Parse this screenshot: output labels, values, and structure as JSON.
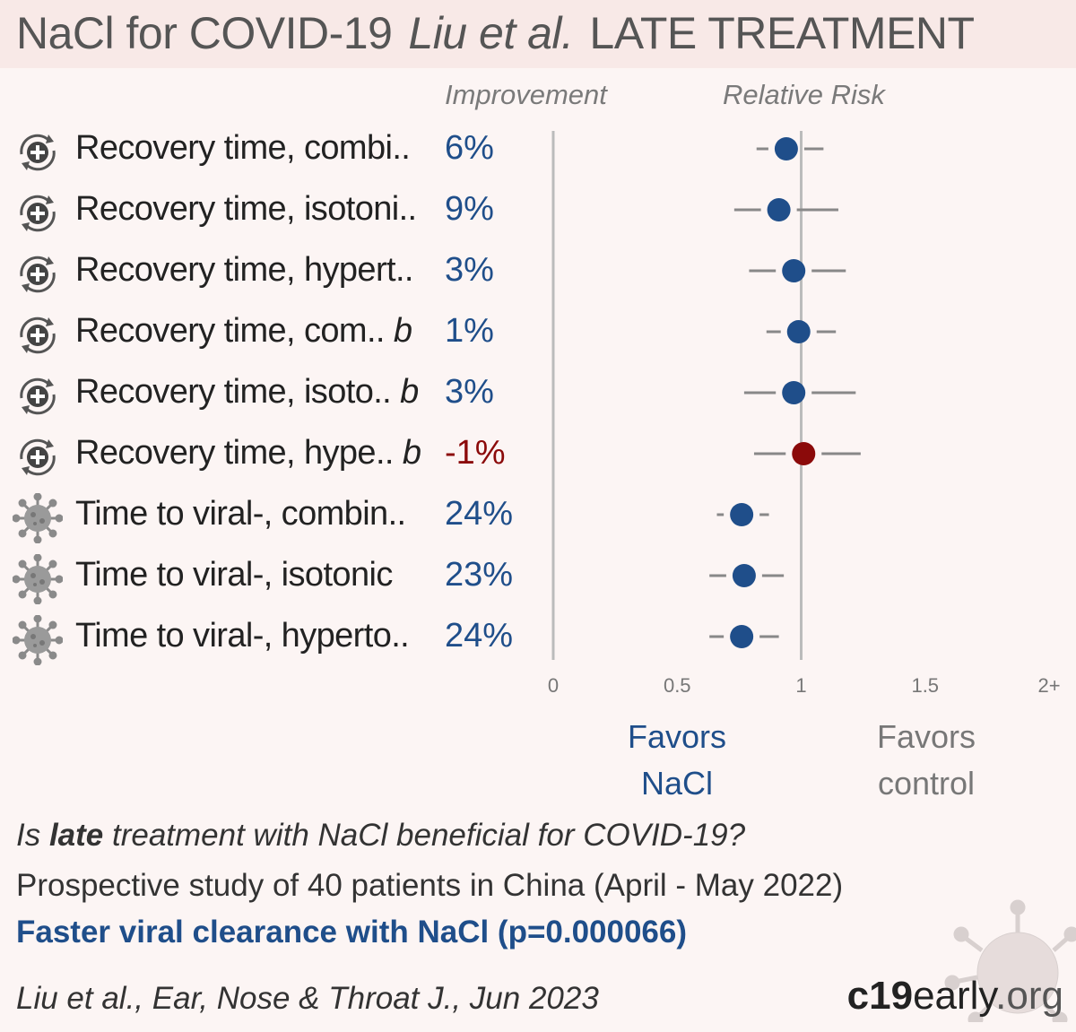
{
  "header": {
    "treatment_title": "NaCl for COVID-19",
    "authors": "Liu et al.",
    "stage": "LATE TREATMENT"
  },
  "columns": {
    "improvement": "Improvement",
    "relative_risk": "Relative Risk"
  },
  "rows": [
    {
      "icon": "recovery-icon",
      "label": "Recovery time, combi..",
      "suffix": "",
      "improvement": "6%"
    },
    {
      "icon": "recovery-icon",
      "label": "Recovery time, isotoni..",
      "suffix": "",
      "improvement": "9%"
    },
    {
      "icon": "recovery-icon",
      "label": "Recovery time, hypert..",
      "suffix": "",
      "improvement": "3%"
    },
    {
      "icon": "recovery-icon",
      "label": "Recovery time, com..",
      "suffix": "b",
      "improvement": "1%"
    },
    {
      "icon": "recovery-icon",
      "label": "Recovery time, isoto..",
      "suffix": "b",
      "improvement": "3%"
    },
    {
      "icon": "recovery-icon",
      "label": "Recovery time, hype..",
      "suffix": "b",
      "improvement": "-1%"
    },
    {
      "icon": "virus-icon",
      "label": "Time to viral-, combin..",
      "suffix": "",
      "improvement": "24%"
    },
    {
      "icon": "virus-icon",
      "label": "Time to viral-, isotonic",
      "suffix": "",
      "improvement": "23%"
    },
    {
      "icon": "virus-icon",
      "label": "Time to viral-, hyperto..",
      "suffix": "",
      "improvement": "24%"
    }
  ],
  "chart_data": {
    "type": "forest",
    "x_ticks": [
      "0",
      "0.5",
      "1",
      "1.5",
      "2+"
    ],
    "xlim": [
      0,
      2
    ],
    "reference_line": 1,
    "series": [
      {
        "label": "Recovery time, combi..",
        "rr": 0.94,
        "ci": [
          0.82,
          1.09
        ]
      },
      {
        "label": "Recovery time, isotoni..",
        "rr": 0.91,
        "ci": [
          0.73,
          1.15
        ]
      },
      {
        "label": "Recovery time, hypert..",
        "rr": 0.97,
        "ci": [
          0.79,
          1.18
        ]
      },
      {
        "label": "Recovery time, com.. b",
        "rr": 0.99,
        "ci": [
          0.86,
          1.14
        ]
      },
      {
        "label": "Recovery time, isoto.. b",
        "rr": 0.97,
        "ci": [
          0.77,
          1.22
        ]
      },
      {
        "label": "Recovery time, hype.. b",
        "rr": 1.01,
        "ci": [
          0.81,
          1.24
        ]
      },
      {
        "label": "Time to viral-, combin..",
        "rr": 0.76,
        "ci": [
          0.66,
          0.87
        ]
      },
      {
        "label": "Time to viral-, isotonic",
        "rr": 0.77,
        "ci": [
          0.63,
          0.93
        ]
      },
      {
        "label": "Time to viral-, hyperto..",
        "rr": 0.76,
        "ci": [
          0.63,
          0.91
        ]
      }
    ],
    "colors": {
      "benefit": "#1f4e8a",
      "harm": "#8b0a0a",
      "ci": "#888888",
      "axis": "#bbbbbb"
    }
  },
  "favors": {
    "left_line1": "Favors",
    "left_line2": "NaCl",
    "right_line1": "Favors",
    "right_line2": "control"
  },
  "summary": {
    "question_pre": "Is ",
    "question_bold": "late",
    "question_post": " treatment with NaCl beneficial for COVID-19?",
    "study": "Prospective study of 40 patients in China (April - May 2022)",
    "result": "Faster viral clearance with NaCl (p=0.000066)",
    "citation": "Liu et al., Ear, Nose & Throat J., Jun 2023"
  },
  "brand": {
    "c19": "c19",
    "early": "early",
    "dot_org": ".org"
  }
}
